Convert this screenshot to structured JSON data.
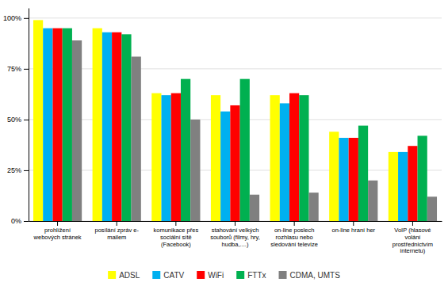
{
  "chart_data": {
    "type": "bar",
    "categories": [
      "prohlížení\nwebových stránek",
      "posílání zpráv e-\nmailem",
      "komunikace přes\nsociální sítě\n(Facebook)",
      "stahování velkých\nsouborů (filmy, hry,\nhudba,....)",
      "on-line poslech\nrozhlasu nebo\nsledování televize",
      "on-line hraní her",
      "VoIP (hlasové\nvolání\nprostřednictvím\ninternetu)"
    ],
    "series": [
      {
        "name": "ADSL",
        "color": "#ffff00",
        "values": [
          99,
          95,
          63,
          62,
          62,
          44,
          34
        ]
      },
      {
        "name": "CATV",
        "color": "#00b0f0",
        "values": [
          95,
          93,
          62,
          54,
          58,
          41,
          34
        ]
      },
      {
        "name": "WiFi",
        "color": "#ff0000",
        "values": [
          95,
          93,
          63,
          57,
          63,
          41,
          37
        ]
      },
      {
        "name": "FTTx",
        "color": "#00b050",
        "values": [
          95,
          92,
          70,
          70,
          62,
          47,
          42
        ]
      },
      {
        "name": "CDMA, UMTS",
        "color": "#808080",
        "values": [
          89,
          81,
          50,
          13,
          14,
          20,
          12
        ]
      }
    ],
    "ylim": [
      0,
      105
    ],
    "yticks": [
      {
        "value": 0,
        "label": "0%"
      },
      {
        "value": 25,
        "label": "25%"
      },
      {
        "value": 50,
        "label": "50%"
      },
      {
        "value": 75,
        "label": "75%"
      },
      {
        "value": 100,
        "label": "100%"
      }
    ],
    "grid": true,
    "legend": "bottom"
  }
}
